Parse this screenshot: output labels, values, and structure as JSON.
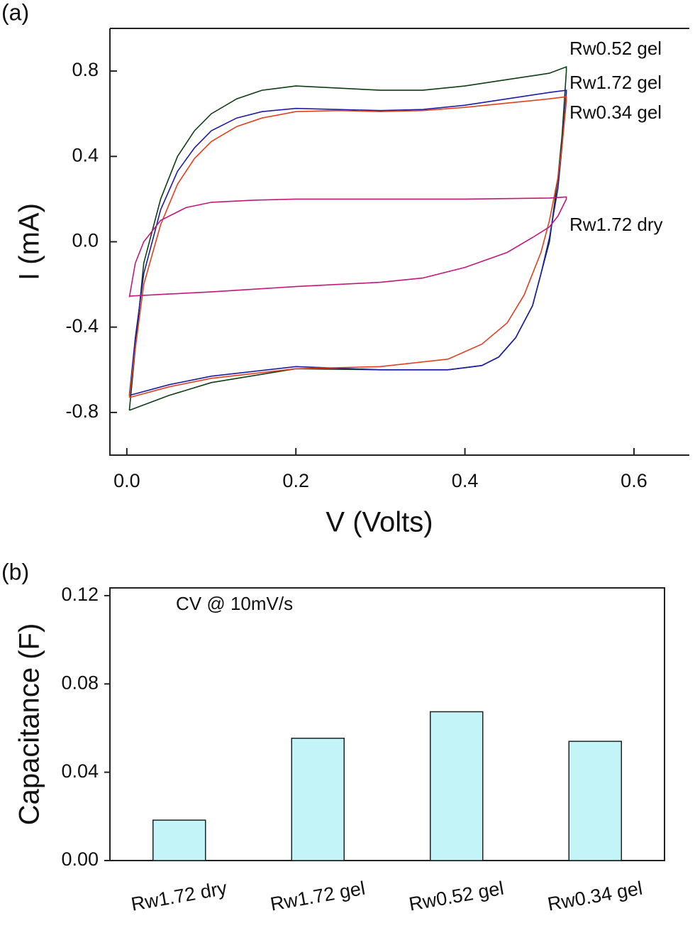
{
  "chart_data": [
    {
      "type": "line",
      "panel_label": "(a)",
      "x_label": "V (Volts)",
      "y_label": "I (mA)",
      "xlim": [
        -0.02,
        0.668
      ],
      "ylim": [
        -1.0,
        1.0
      ],
      "xticks": [
        {
          "value": 0,
          "label": "0.0"
        },
        0.2,
        0.4,
        0.6
      ],
      "yticks": [
        -0.8,
        -0.4,
        {
          "value": 0,
          "label": "0.0"
        },
        0.4,
        0.8
      ],
      "series": [
        {
          "name": "Rw0.52 gel",
          "color": "#0d3d12",
          "x": [
            0.003,
            0.01,
            0.02,
            0.04,
            0.06,
            0.08,
            0.1,
            0.13,
            0.16,
            0.2,
            0.25,
            0.3,
            0.35,
            0.4,
            0.45,
            0.5,
            0.52,
            0.52,
            0.515,
            0.51,
            0.5,
            0.49,
            0.48,
            0.46,
            0.44,
            0.42,
            0.38,
            0.3,
            0.2,
            0.1,
            0.05,
            0.003
          ],
          "values": [
            -0.79,
            -0.5,
            -0.1,
            0.2,
            0.4,
            0.52,
            0.6,
            0.67,
            0.71,
            0.73,
            0.72,
            0.71,
            0.71,
            0.73,
            0.76,
            0.79,
            0.82,
            0.8,
            0.5,
            0.3,
            0.0,
            -0.15,
            -0.3,
            -0.45,
            -0.54,
            -0.58,
            -0.6,
            -0.6,
            -0.595,
            -0.66,
            -0.72,
            -0.79
          ]
        },
        {
          "name": "Rw1.72 gel",
          "color": "#1c1ca8",
          "x": [
            0.003,
            0.01,
            0.02,
            0.04,
            0.06,
            0.08,
            0.1,
            0.13,
            0.16,
            0.2,
            0.25,
            0.3,
            0.35,
            0.4,
            0.45,
            0.5,
            0.52,
            0.52,
            0.515,
            0.51,
            0.5,
            0.49,
            0.48,
            0.46,
            0.44,
            0.42,
            0.38,
            0.3,
            0.2,
            0.1,
            0.05,
            0.003
          ],
          "values": [
            -0.72,
            -0.45,
            -0.15,
            0.15,
            0.33,
            0.44,
            0.52,
            0.58,
            0.61,
            0.625,
            0.62,
            0.615,
            0.62,
            0.64,
            0.67,
            0.7,
            0.71,
            0.7,
            0.45,
            0.25,
            0.02,
            -0.15,
            -0.3,
            -0.45,
            -0.54,
            -0.58,
            -0.6,
            -0.6,
            -0.585,
            -0.63,
            -0.67,
            -0.72
          ]
        },
        {
          "name": "Rw0.34 gel",
          "color": "#e2401c",
          "x": [
            0.003,
            0.01,
            0.02,
            0.04,
            0.06,
            0.08,
            0.1,
            0.13,
            0.16,
            0.2,
            0.25,
            0.3,
            0.35,
            0.4,
            0.45,
            0.5,
            0.52,
            0.52,
            0.515,
            0.51,
            0.5,
            0.49,
            0.47,
            0.45,
            0.42,
            0.38,
            0.3,
            0.2,
            0.1,
            0.05,
            0.003
          ],
          "values": [
            -0.73,
            -0.5,
            -0.2,
            0.08,
            0.27,
            0.39,
            0.47,
            0.54,
            0.58,
            0.61,
            0.615,
            0.61,
            0.615,
            0.63,
            0.65,
            0.67,
            0.68,
            0.66,
            0.45,
            0.3,
            0.1,
            -0.05,
            -0.25,
            -0.38,
            -0.48,
            -0.55,
            -0.585,
            -0.595,
            -0.64,
            -0.68,
            -0.73
          ]
        },
        {
          "name": "Rw1.72 dry",
          "color": "#c2187c",
          "x": [
            0.003,
            0.01,
            0.02,
            0.04,
            0.07,
            0.1,
            0.15,
            0.2,
            0.3,
            0.4,
            0.5,
            0.52,
            0.52,
            0.51,
            0.5,
            0.48,
            0.45,
            0.4,
            0.35,
            0.3,
            0.2,
            0.1,
            0.05,
            0.003
          ],
          "values": [
            -0.26,
            -0.1,
            0.0,
            0.1,
            0.16,
            0.185,
            0.195,
            0.2,
            0.2,
            0.2,
            0.205,
            0.21,
            0.2,
            0.12,
            0.07,
            0.02,
            -0.05,
            -0.12,
            -0.17,
            -0.19,
            -0.21,
            -0.235,
            -0.245,
            -0.255
          ]
        }
      ]
    },
    {
      "type": "bar",
      "panel_label": "(b)",
      "y_label": "Capacitance (F)",
      "annotation": "CV @ 10mV/s",
      "categories": [
        "Rw1.72 dry",
        "Rw1.72 gel",
        "Rw0.52 gel",
        "Rw0.34 gel"
      ],
      "values": [
        0.0183,
        0.0554,
        0.0674,
        0.054
      ],
      "color": "#c2f4f8",
      "ylim": [
        0,
        0.1235
      ],
      "yticks": [
        {
          "value": 0,
          "label": "0.00"
        },
        0.04,
        0.08,
        0.12
      ]
    }
  ]
}
